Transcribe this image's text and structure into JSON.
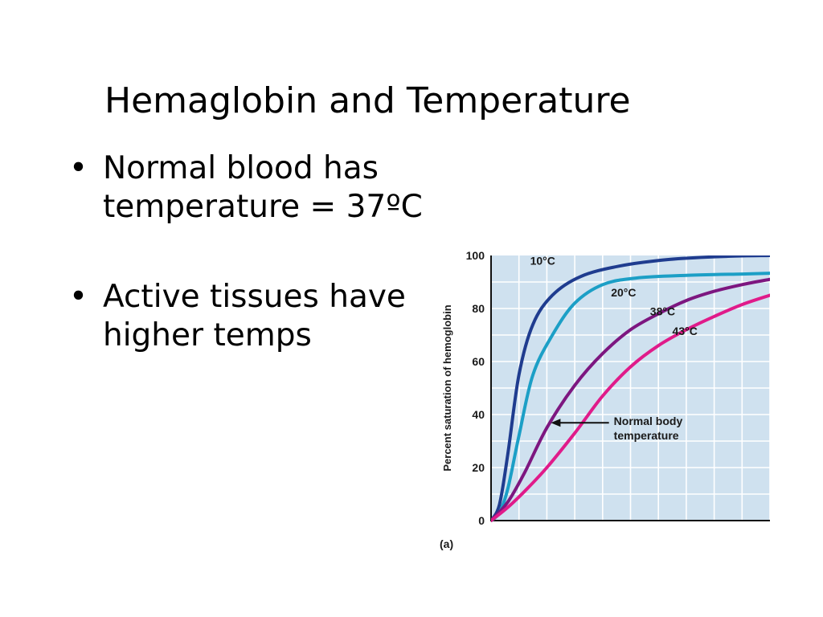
{
  "slide": {
    "title": "Hemaglobin and Temperature",
    "bullets": [
      {
        "symbol": "•",
        "text": "Normal blood has temperature = 37ºC"
      },
      {
        "symbol": "•",
        "text": "Active tissues have\nhigher temps"
      }
    ]
  },
  "chart_data": {
    "type": "line",
    "panel_label": "(a)",
    "ylabel": "Percent saturation of hemoglobin",
    "xlabel": "",
    "ylim": [
      0,
      100
    ],
    "yticks": [
      0,
      20,
      40,
      60,
      80,
      100
    ],
    "grid": true,
    "background_color": "#cfe1ef",
    "series": [
      {
        "name": "10°C",
        "color": "#1f3c8f",
        "x": [
          0,
          0.03,
          0.06,
          0.1,
          0.15,
          0.22,
          0.32,
          0.46,
          0.64,
          0.85,
          1.0
        ],
        "y": [
          0,
          6,
          25,
          55,
          74,
          85,
          92,
          96,
          98.5,
          99.7,
          100
        ]
      },
      {
        "name": "20°C",
        "color": "#1c9fc6",
        "x": [
          0,
          0.03,
          0.06,
          0.1,
          0.15,
          0.22,
          0.3,
          0.4,
          0.52,
          0.7,
          0.9,
          1.0
        ],
        "y": [
          0,
          3,
          12,
          32,
          55,
          70,
          82,
          89,
          91.5,
          92.5,
          93,
          93.3
        ]
      },
      {
        "name": "38°C",
        "color": "#7d1780",
        "x": [
          0,
          0.06,
          0.12,
          0.2,
          0.3,
          0.4,
          0.5,
          0.6,
          0.7,
          0.8,
          0.9,
          1.0
        ],
        "y": [
          0,
          7,
          18,
          35,
          51,
          63,
          72,
          78,
          83,
          86.5,
          89,
          91
        ]
      },
      {
        "name": "43°C",
        "color": "#e01b8a",
        "x": [
          0,
          0.06,
          0.12,
          0.2,
          0.3,
          0.4,
          0.5,
          0.6,
          0.7,
          0.8,
          0.9,
          1.0
        ],
        "y": [
          0,
          5,
          11,
          20,
          33,
          47,
          58,
          66,
          72,
          77,
          81.5,
          85
        ]
      }
    ],
    "annotations": [
      {
        "text": "Normal body\ntemperature",
        "points_to": "38°C",
        "x": 0.2,
        "y": 36
      }
    ]
  }
}
